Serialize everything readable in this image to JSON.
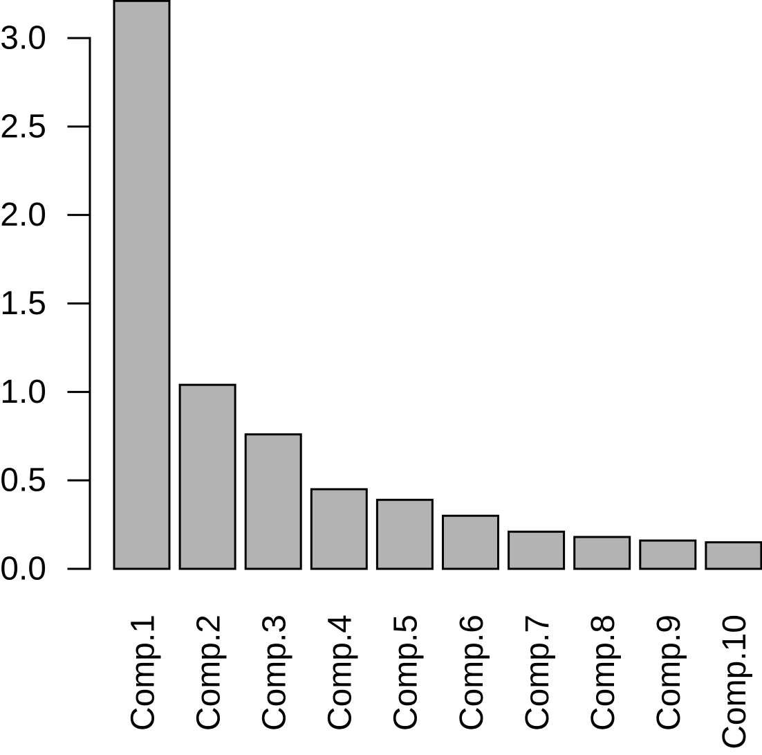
{
  "chart_data": {
    "type": "bar",
    "title": "",
    "xlabel": "",
    "ylabel": "",
    "categories": [
      "Comp.1",
      "Comp.2",
      "Comp.3",
      "Comp.4",
      "Comp.5",
      "Comp.6",
      "Comp.7",
      "Comp.8",
      "Comp.9",
      "Comp.10"
    ],
    "values": [
      3.21,
      1.04,
      0.76,
      0.45,
      0.39,
      0.3,
      0.21,
      0.18,
      0.16,
      0.15
    ],
    "ylim": [
      0,
      3.21
    ],
    "yticks": [
      0.0,
      0.5,
      1.0,
      1.5,
      2.0,
      2.5,
      3.0
    ],
    "ytick_labels": [
      "0.0",
      "0.5",
      "1.0",
      "1.5",
      "2.0",
      "2.5",
      "3.0"
    ],
    "grid": false,
    "legend_position": "none",
    "x_label_rotation_degrees": 90,
    "colors": {
      "bar_fill": "#b3b3b3",
      "bar_stroke": "#000000",
      "axis": "#000000",
      "text": "#000000",
      "background": "#ffffff"
    }
  }
}
